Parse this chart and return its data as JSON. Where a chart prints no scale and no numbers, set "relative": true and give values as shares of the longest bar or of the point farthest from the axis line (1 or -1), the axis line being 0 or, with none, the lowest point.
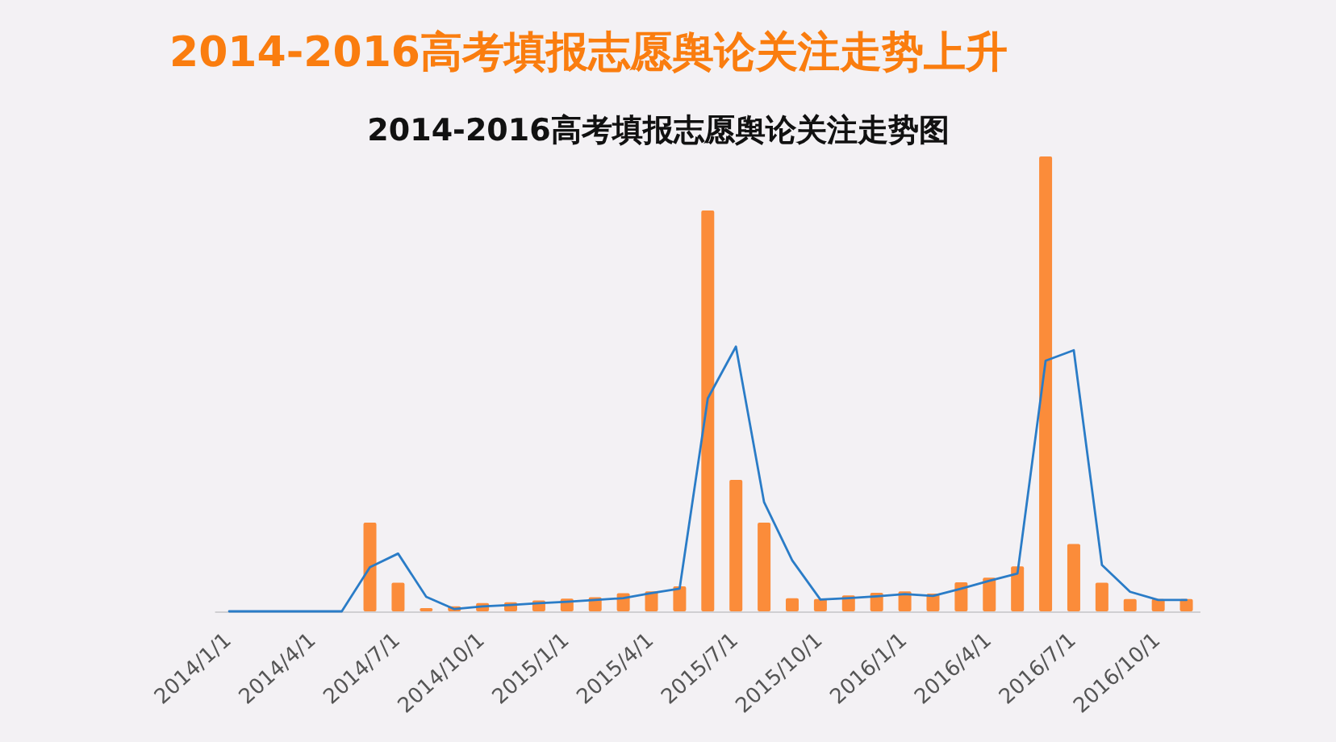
{
  "chart_data": {
    "type": "bar",
    "title": "2014-2016高考填报志愿舆论关注走势上升",
    "subtitle": "2014-2016高考填报志愿舆论关注走势图",
    "relative": true,
    "categories": [
      "2014/1/1",
      null,
      null,
      "2014/4/1",
      null,
      null,
      "2014/7/1",
      null,
      null,
      "2014/10/1",
      null,
      null,
      "2015/1/1",
      null,
      null,
      "2015/4/1",
      null,
      null,
      "2015/7/1",
      null,
      null,
      "2015/10/1",
      null,
      null,
      "2016/1/1",
      null,
      null,
      "2016/4/1",
      null,
      null,
      "2016/7/1",
      null,
      null,
      "2016/10/1",
      null
    ],
    "series": [
      {
        "color": "#fb8c3a",
        "values": [
          0,
          0,
          0,
          0,
          0,
          0.195,
          0.063,
          0.007,
          0.011,
          0.018,
          0.02,
          0.024,
          0.028,
          0.031,
          0.04,
          0.044,
          0.055,
          0.881,
          0.289,
          0.195,
          0.029,
          0.027,
          0.035,
          0.041,
          0.044,
          0.039,
          0.064,
          0.074,
          0.099,
          1,
          0.148,
          0.063,
          0.027,
          0.027,
          0.027
        ]
      },
      {
        "type": "line",
        "color": "#2a7cc7",
        "values": [
          0,
          0,
          0,
          0,
          0,
          0.097,
          0.127,
          0.032,
          0.005,
          0.011,
          0.014,
          0.018,
          0.021,
          0.025,
          0.029,
          0.04,
          0.05,
          0.468,
          0.582,
          0.24,
          0.112,
          0.026,
          0.029,
          0.033,
          0.038,
          0.034,
          0.05,
          0.067,
          0.083,
          0.551,
          0.574,
          0.102,
          0.043,
          0.025,
          0.025
        ]
      }
    ]
  }
}
